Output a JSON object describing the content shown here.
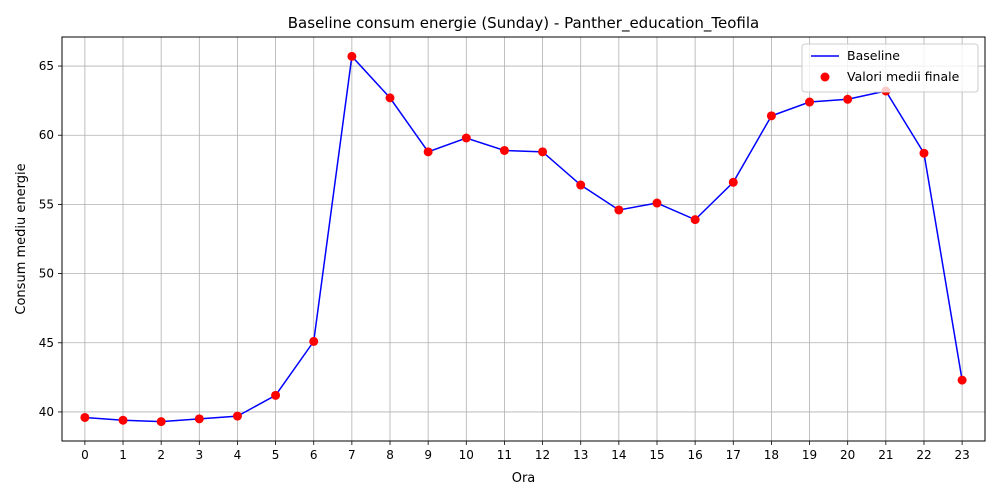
{
  "chart_data": {
    "type": "line",
    "title": "Baseline consum energie (Sunday) - Panther_education_Teofila",
    "xlabel": "Ora",
    "ylabel": "Consum mediu energie",
    "x": [
      0,
      1,
      2,
      3,
      4,
      5,
      6,
      7,
      8,
      9,
      10,
      11,
      12,
      13,
      14,
      15,
      16,
      17,
      18,
      19,
      20,
      21,
      22,
      23
    ],
    "xlim": [
      -0.6,
      23.6
    ],
    "ylim": [
      37.9,
      67.1
    ],
    "yticks": [
      40,
      45,
      50,
      55,
      60,
      65
    ],
    "grid": true,
    "legend_position": "top-right",
    "series": [
      {
        "name": "Baseline",
        "kind": "line",
        "color": "#0000ff",
        "values": [
          39.6,
          39.4,
          39.3,
          39.5,
          39.7,
          41.2,
          45.1,
          65.7,
          62.7,
          58.8,
          59.8,
          58.9,
          58.8,
          56.4,
          54.6,
          55.1,
          53.9,
          56.6,
          61.4,
          62.4,
          62.6,
          63.2,
          58.7,
          42.3
        ]
      },
      {
        "name": "Valori medii finale",
        "kind": "scatter",
        "color": "#ff0000",
        "values": [
          39.6,
          39.4,
          39.3,
          39.5,
          39.7,
          41.2,
          45.1,
          65.7,
          62.7,
          58.8,
          59.8,
          58.9,
          58.8,
          56.4,
          54.6,
          55.1,
          53.9,
          56.6,
          61.4,
          62.4,
          62.6,
          63.2,
          58.7,
          42.3
        ]
      }
    ]
  }
}
